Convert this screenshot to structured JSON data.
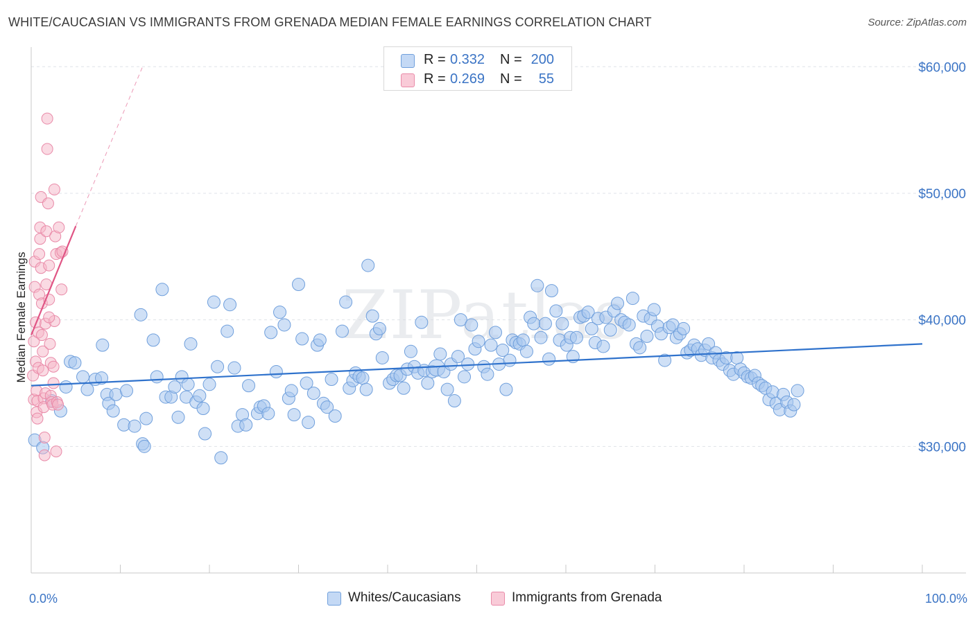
{
  "header": {
    "title": "WHITE/CAUCASIAN VS IMMIGRANTS FROM GRENADA MEDIAN FEMALE EARNINGS CORRELATION CHART",
    "source": "Source: ZipAtlas.com"
  },
  "watermark": "ZIPatlas",
  "legend": {
    "rows": [
      {
        "r_label": "R =",
        "r_value": "0.332",
        "n_label": "N =",
        "n_value": "200",
        "color": "#a7c6ef"
      },
      {
        "r_label": "R =",
        "r_value": "0.269",
        "n_label": "N =",
        "n_value": "55",
        "color": "#f5b5c8"
      }
    ]
  },
  "bottom_legend": [
    {
      "label": "Whites/Caucasians",
      "color": "#a7c6ef"
    },
    {
      "label": "Immigrants from Grenada",
      "color": "#f5b5c8"
    }
  ],
  "colors": {
    "blue_fill": "#a7c6ef",
    "blue_stroke": "#6f9fdc",
    "blue_line": "#2f72cc",
    "pink_fill": "#f5b5c8",
    "pink_stroke": "#e98aa8",
    "pink_line": "#e05585",
    "tick_text": "#3b74c5",
    "grid": "#dfe3e8"
  },
  "chart_data": {
    "type": "scatter",
    "title": "WHITE/CAUCASIAN VS IMMIGRANTS FROM GRENADA MEDIAN FEMALE EARNINGS CORRELATION CHART",
    "xlabel": "",
    "ylabel": "Median Female Earnings",
    "xlim": [
      0,
      100
    ],
    "ylim": [
      20000,
      61000
    ],
    "x_tick_labels": [
      "0.0%",
      "100.0%"
    ],
    "y_ticks": [
      {
        "value": 30000,
        "label": "$30,000"
      },
      {
        "value": 40000,
        "label": "$40,000"
      },
      {
        "value": 50000,
        "label": "$50,000"
      },
      {
        "value": 60000,
        "label": "$60,000"
      }
    ],
    "grid": true,
    "legend_position": "top-center",
    "series": [
      {
        "name": "Whites/Caucasians",
        "r": 0.332,
        "n": 200,
        "trendline": {
          "x": [
            0,
            100
          ],
          "y": [
            34800,
            38100
          ],
          "style": "solid"
        },
        "points": [
          [
            0.4,
            30500
          ],
          [
            1.3,
            29900
          ],
          [
            2.3,
            33600
          ],
          [
            3.3,
            32800
          ],
          [
            3.9,
            34700
          ],
          [
            4.4,
            36700
          ],
          [
            4.9,
            36600
          ],
          [
            5.8,
            35500
          ],
          [
            6.3,
            34500
          ],
          [
            7.2,
            35300
          ],
          [
            7.9,
            35400
          ],
          [
            8.0,
            38000
          ],
          [
            8.5,
            34100
          ],
          [
            8.7,
            33400
          ],
          [
            9.2,
            32800
          ],
          [
            9.5,
            34100
          ],
          [
            10.4,
            31700
          ],
          [
            10.7,
            34400
          ],
          [
            11.6,
            31600
          ],
          [
            12.3,
            40400
          ],
          [
            12.5,
            30200
          ],
          [
            12.7,
            30000
          ],
          [
            12.9,
            32200
          ],
          [
            13.7,
            38400
          ],
          [
            14.1,
            35500
          ],
          [
            14.7,
            42400
          ],
          [
            15.1,
            33900
          ],
          [
            15.7,
            33900
          ],
          [
            16.1,
            34700
          ],
          [
            16.5,
            32300
          ],
          [
            16.9,
            35500
          ],
          [
            17.4,
            33900
          ],
          [
            17.6,
            34900
          ],
          [
            17.9,
            38100
          ],
          [
            18.5,
            33500
          ],
          [
            18.9,
            34000
          ],
          [
            19.3,
            33000
          ],
          [
            19.5,
            31000
          ],
          [
            20.0,
            34900
          ],
          [
            20.5,
            41400
          ],
          [
            20.9,
            36300
          ],
          [
            21.3,
            29100
          ],
          [
            22.0,
            39100
          ],
          [
            22.3,
            41200
          ],
          [
            22.8,
            36200
          ],
          [
            23.2,
            31600
          ],
          [
            23.7,
            32500
          ],
          [
            24.1,
            31700
          ],
          [
            24.4,
            34800
          ],
          [
            25.4,
            32600
          ],
          [
            25.7,
            33100
          ],
          [
            26.1,
            33200
          ],
          [
            26.6,
            32600
          ],
          [
            26.9,
            39000
          ],
          [
            27.5,
            35900
          ],
          [
            27.9,
            40600
          ],
          [
            28.4,
            39600
          ],
          [
            28.9,
            33800
          ],
          [
            29.2,
            34400
          ],
          [
            29.5,
            32500
          ],
          [
            30.0,
            42800
          ],
          [
            30.4,
            38500
          ],
          [
            30.9,
            35000
          ],
          [
            31.1,
            31900
          ],
          [
            31.7,
            34200
          ],
          [
            32.1,
            38000
          ],
          [
            32.4,
            38400
          ],
          [
            32.8,
            33400
          ],
          [
            33.2,
            33100
          ],
          [
            33.7,
            35300
          ],
          [
            34.1,
            32400
          ],
          [
            34.9,
            39100
          ],
          [
            35.3,
            41400
          ],
          [
            35.7,
            34600
          ],
          [
            36.1,
            35200
          ],
          [
            36.4,
            35800
          ],
          [
            36.8,
            35500
          ],
          [
            37.2,
            35400
          ],
          [
            37.6,
            34500
          ],
          [
            37.8,
            44300
          ],
          [
            38.3,
            40300
          ],
          [
            38.7,
            38900
          ],
          [
            39.1,
            39300
          ],
          [
            39.4,
            37000
          ],
          [
            40.2,
            35000
          ],
          [
            40.6,
            35300
          ],
          [
            41.0,
            35600
          ],
          [
            41.4,
            35600
          ],
          [
            41.8,
            34600
          ],
          [
            42.2,
            36100
          ],
          [
            42.6,
            37500
          ],
          [
            43.0,
            36300
          ],
          [
            43.4,
            35800
          ],
          [
            43.8,
            39800
          ],
          [
            44.1,
            36000
          ],
          [
            44.5,
            35000
          ],
          [
            45.0,
            35900
          ],
          [
            45.5,
            36200
          ],
          [
            45.9,
            37300
          ],
          [
            46.3,
            35900
          ],
          [
            46.7,
            34500
          ],
          [
            47.1,
            36500
          ],
          [
            47.5,
            33600
          ],
          [
            47.9,
            37100
          ],
          [
            48.2,
            40000
          ],
          [
            48.6,
            35500
          ],
          [
            49.0,
            36500
          ],
          [
            49.4,
            39600
          ],
          [
            49.8,
            37700
          ],
          [
            50.2,
            38300
          ],
          [
            50.8,
            36300
          ],
          [
            51.2,
            35700
          ],
          [
            51.6,
            38000
          ],
          [
            52.1,
            39000
          ],
          [
            52.5,
            36500
          ],
          [
            52.9,
            37600
          ],
          [
            53.3,
            34500
          ],
          [
            53.7,
            36800
          ],
          [
            54.0,
            38400
          ],
          [
            54.4,
            38200
          ],
          [
            54.8,
            38100
          ],
          [
            55.2,
            38400
          ],
          [
            55.6,
            37500
          ],
          [
            56.0,
            40200
          ],
          [
            56.4,
            39700
          ],
          [
            56.8,
            42700
          ],
          [
            57.2,
            38600
          ],
          [
            57.7,
            39700
          ],
          [
            58.1,
            36900
          ],
          [
            58.4,
            42300
          ],
          [
            58.9,
            40700
          ],
          [
            59.3,
            38400
          ],
          [
            59.6,
            39700
          ],
          [
            60.1,
            38000
          ],
          [
            60.5,
            38600
          ],
          [
            60.8,
            37100
          ],
          [
            61.2,
            38600
          ],
          [
            61.6,
            40200
          ],
          [
            62.0,
            40300
          ],
          [
            62.5,
            40600
          ],
          [
            62.9,
            39300
          ],
          [
            63.3,
            38200
          ],
          [
            63.6,
            40100
          ],
          [
            64.2,
            37900
          ],
          [
            64.5,
            40200
          ],
          [
            65.0,
            39200
          ],
          [
            65.4,
            40700
          ],
          [
            65.8,
            41300
          ],
          [
            66.2,
            40000
          ],
          [
            66.6,
            39800
          ],
          [
            67.1,
            39600
          ],
          [
            67.5,
            41700
          ],
          [
            67.9,
            38100
          ],
          [
            68.3,
            37800
          ],
          [
            68.7,
            40300
          ],
          [
            69.1,
            38700
          ],
          [
            69.5,
            40100
          ],
          [
            69.9,
            40800
          ],
          [
            70.3,
            39500
          ],
          [
            70.7,
            38900
          ],
          [
            71.1,
            36800
          ],
          [
            71.6,
            39400
          ],
          [
            72.0,
            39600
          ],
          [
            72.4,
            38600
          ],
          [
            72.8,
            38900
          ],
          [
            73.2,
            39300
          ],
          [
            73.6,
            37400
          ],
          [
            74.0,
            37600
          ],
          [
            74.4,
            38000
          ],
          [
            74.8,
            37700
          ],
          [
            75.2,
            37200
          ],
          [
            75.6,
            37600
          ],
          [
            76.0,
            38100
          ],
          [
            76.4,
            37000
          ],
          [
            76.8,
            37400
          ],
          [
            77.2,
            36800
          ],
          [
            77.6,
            36500
          ],
          [
            78.0,
            37000
          ],
          [
            78.4,
            36000
          ],
          [
            78.8,
            35700
          ],
          [
            79.2,
            37000
          ],
          [
            79.6,
            36100
          ],
          [
            80.0,
            35800
          ],
          [
            80.4,
            35500
          ],
          [
            80.8,
            35400
          ],
          [
            81.2,
            35600
          ],
          [
            81.6,
            35000
          ],
          [
            82.0,
            34800
          ],
          [
            82.4,
            34600
          ],
          [
            82.8,
            33700
          ],
          [
            83.2,
            34300
          ],
          [
            83.6,
            33400
          ],
          [
            84.0,
            32900
          ],
          [
            84.4,
            34100
          ],
          [
            84.8,
            33500
          ],
          [
            85.2,
            32800
          ],
          [
            85.6,
            33300
          ],
          [
            86.0,
            34400
          ]
        ]
      },
      {
        "name": "Immigrants from Grenada",
        "r": 0.269,
        "n": 55,
        "trendline": {
          "x": [
            0,
            5,
            25
          ],
          "y": [
            38800,
            47400,
            81000
          ],
          "style": "solid-then-dashed"
        },
        "points": [
          [
            0.2,
            35600
          ],
          [
            0.3,
            33700
          ],
          [
            0.3,
            38300
          ],
          [
            0.4,
            42600
          ],
          [
            0.4,
            44600
          ],
          [
            0.5,
            39800
          ],
          [
            0.5,
            36700
          ],
          [
            0.6,
            34400
          ],
          [
            0.6,
            32700
          ],
          [
            0.7,
            32200
          ],
          [
            0.7,
            33600
          ],
          [
            0.8,
            36200
          ],
          [
            0.8,
            39000
          ],
          [
            0.9,
            42000
          ],
          [
            0.9,
            45200
          ],
          [
            1.0,
            46400
          ],
          [
            1.0,
            47300
          ],
          [
            1.1,
            49700
          ],
          [
            1.1,
            44100
          ],
          [
            1.2,
            41300
          ],
          [
            1.2,
            38800
          ],
          [
            1.3,
            37500
          ],
          [
            1.3,
            36000
          ],
          [
            1.4,
            33800
          ],
          [
            1.4,
            33100
          ],
          [
            1.5,
            29300
          ],
          [
            1.5,
            30700
          ],
          [
            1.6,
            34200
          ],
          [
            1.6,
            39700
          ],
          [
            1.7,
            42800
          ],
          [
            1.7,
            47000
          ],
          [
            1.8,
            53500
          ],
          [
            1.8,
            55900
          ],
          [
            1.9,
            49200
          ],
          [
            2.0,
            44300
          ],
          [
            2.0,
            41600
          ],
          [
            2.1,
            38100
          ],
          [
            2.2,
            36600
          ],
          [
            2.2,
            34000
          ],
          [
            2.3,
            33500
          ],
          [
            2.4,
            33300
          ],
          [
            2.5,
            35000
          ],
          [
            2.5,
            36300
          ],
          [
            2.6,
            39900
          ],
          [
            2.6,
            50300
          ],
          [
            2.7,
            46600
          ],
          [
            2.8,
            45200
          ],
          [
            2.8,
            29600
          ],
          [
            2.9,
            33500
          ],
          [
            3.0,
            33300
          ],
          [
            3.1,
            47300
          ],
          [
            3.3,
            45300
          ],
          [
            3.4,
            42400
          ],
          [
            3.5,
            45400
          ],
          [
            2.0,
            40200
          ]
        ]
      }
    ]
  }
}
